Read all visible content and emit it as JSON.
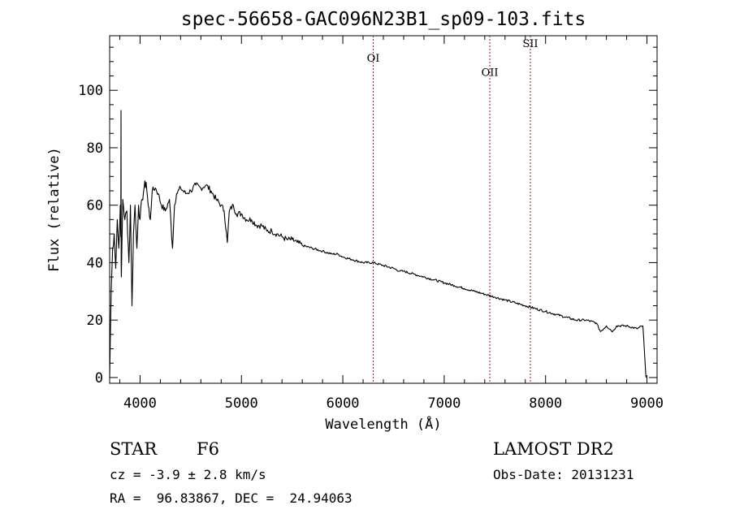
{
  "chart_data": {
    "type": "line",
    "title": "spec-56658-GAC096N23B1_sp09-103.fits",
    "xlabel": "Wavelength (Å)",
    "ylabel": "Flux (relative)",
    "xlim": [
      3700,
      9100
    ],
    "ylim": [
      -2,
      119
    ],
    "xticks": [
      4000,
      5000,
      6000,
      7000,
      8000,
      9000
    ],
    "yticks": [
      0,
      20,
      40,
      60,
      80,
      100
    ],
    "grid": false,
    "lines": [
      {
        "label": "OI",
        "x": 6300,
        "label_y": 110
      },
      {
        "label": "OII",
        "x": 7450,
        "label_y": 105
      },
      {
        "label": "SII",
        "x": 7850,
        "label_y": 115
      }
    ],
    "series": [
      {
        "x": [
          3700,
          3715,
          3730,
          3745,
          3760,
          3775,
          3790,
          3805,
          3815,
          3830,
          3850,
          3870,
          3890,
          3905,
          3920,
          3935,
          3950,
          3968,
          3985,
          4000,
          4020,
          4040,
          4060,
          4080,
          4101,
          4120,
          4150,
          4180,
          4210,
          4250,
          4290,
          4320,
          4340,
          4360,
          4400,
          4450,
          4500,
          4550,
          4600,
          4650,
          4700,
          4750,
          4800,
          4830,
          4861,
          4880,
          4920,
          4950,
          5000,
          5050,
          5100,
          5150,
          5200,
          5250,
          5300,
          5350,
          5400,
          5450,
          5500,
          5550,
          5600,
          5700,
          5800,
          5890,
          5950,
          6000,
          6100,
          6200,
          6300,
          6400,
          6500,
          6563,
          6600,
          6700,
          6800,
          6900,
          7000,
          7100,
          7200,
          7300,
          7400,
          7500,
          7600,
          7700,
          7800,
          7900,
          8000,
          8100,
          8200,
          8300,
          8400,
          8500,
          8542,
          8600,
          8662,
          8700,
          8800,
          8900,
          8960,
          8990
        ],
        "values": [
          0,
          30,
          45,
          50,
          38,
          55,
          45,
          60,
          35,
          62,
          55,
          58,
          40,
          60,
          25,
          50,
          60,
          45,
          60,
          55,
          62,
          66,
          68,
          60,
          55,
          65,
          66,
          64,
          60,
          58,
          62,
          45,
          60,
          64,
          66,
          64,
          65,
          67,
          66,
          67,
          65,
          62,
          60,
          58,
          47,
          58,
          60,
          57,
          57,
          55,
          55,
          53,
          53,
          51,
          51,
          50,
          49,
          48,
          48,
          47,
          46,
          45,
          44,
          43,
          43,
          42,
          41,
          40,
          40,
          39,
          38,
          37,
          37,
          36,
          35,
          34,
          33,
          32,
          31,
          30,
          29,
          28,
          27,
          26,
          25,
          24,
          23,
          22,
          21,
          20,
          20,
          19,
          16,
          18,
          16,
          18,
          18,
          17,
          18,
          0
        ]
      }
    ]
  },
  "info": {
    "object_type": "STAR",
    "subclass": "F6",
    "survey": "LAMOST DR2",
    "redshift": "cz = -3.9 ± 2.8 km/s",
    "coords": "RA =  96.83867, DEC =  24.94063",
    "obs_date": "Obs-Date: 20131231"
  }
}
